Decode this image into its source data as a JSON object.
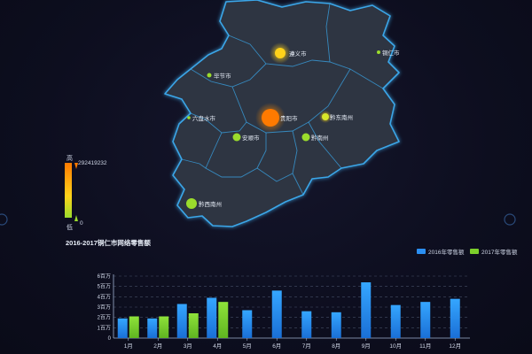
{
  "map": {
    "cities": [
      {
        "name": "遵义市",
        "value": 0.55
      },
      {
        "name": "铜仁市",
        "value": 0.05
      },
      {
        "name": "毕节市",
        "value": 0.08
      },
      {
        "name": "贵阳市",
        "value": 1.0
      },
      {
        "name": "黔东南州",
        "value": 0.35
      },
      {
        "name": "六盘水市",
        "value": 0.05
      },
      {
        "name": "安顺市",
        "value": 0.2
      },
      {
        "name": "黔南州",
        "value": 0.2
      },
      {
        "name": "黔西南州",
        "value": 0.3
      }
    ]
  },
  "legend_scale": {
    "high_label": "高",
    "low_label": "低",
    "max_value": "292419232",
    "min_value": "0",
    "color_high": "#ff7a00",
    "color_low": "#9bdc2c"
  },
  "chart_data": {
    "type": "bar",
    "title": "2016-2017铜仁市网络零售额",
    "categories": [
      "1月",
      "2月",
      "3月",
      "4月",
      "5月",
      "6月",
      "7月",
      "8月",
      "9月",
      "10月",
      "11月",
      "12月"
    ],
    "series": [
      {
        "name": "2016年零售额",
        "color": "#2b8ff2",
        "values": [
          1.9,
          1.9,
          3.3,
          3.9,
          2.7,
          4.6,
          2.6,
          2.5,
          5.4,
          3.2,
          3.5,
          3.8
        ]
      },
      {
        "name": "2017年零售额",
        "color": "#7ccf2b",
        "values": [
          2.1,
          2.1,
          2.4,
          3.5,
          null,
          null,
          null,
          null,
          null,
          null,
          null,
          null
        ]
      }
    ],
    "ytick_labels": [
      "0",
      "1百万",
      "2百万",
      "3百万",
      "4百万",
      "5百万",
      "6百万"
    ],
    "ylim": [
      0,
      6
    ],
    "legend_position": "top-right",
    "grid": true
  }
}
